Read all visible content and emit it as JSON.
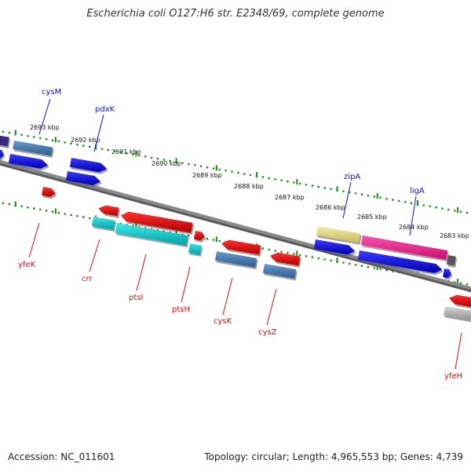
{
  "header": {
    "title": "Escherichia coli O127:H6 str. E2348/69, complete genome"
  },
  "footer": {
    "accession": "Accession: NC_011601",
    "summary": "Topology: circular; Length: 4,965,553 bp; Genes: 4,739"
  },
  "scale_labels": [
    "2693 kbp",
    "2692 kbp",
    "2691 kbp",
    "2690 kbp",
    "2689 kbp",
    "2688 kbp",
    "2687 kbp",
    "2686 kbp",
    "2685 kbp",
    "2684 kbp",
    "2683 kbp"
  ],
  "gene_labels": {
    "top": [
      "cysM",
      "pdxK",
      "zipA",
      "ligA"
    ],
    "bottom": [
      "yfeK",
      "crr",
      "ptsI",
      "ptsH",
      "cysK",
      "cysZ",
      "yfeH"
    ]
  },
  "colors": {
    "label_top": "#1010c8",
    "label_bottom": "#d01010",
    "scale_dots": "#1a8a1a",
    "backbone": "#8a8a8a"
  }
}
